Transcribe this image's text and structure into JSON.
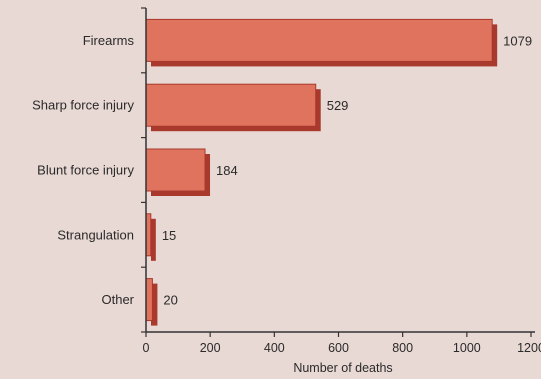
{
  "chart_data": {
    "type": "bar",
    "orientation": "horizontal",
    "categories": [
      "Firearms",
      "Sharp force injury",
      "Blunt force injury",
      "Strangulation",
      "Other"
    ],
    "values": [
      1079,
      529,
      184,
      15,
      20
    ],
    "value_labels": [
      "1079",
      "529",
      "184",
      "15",
      "20"
    ],
    "title": "",
    "xlabel": "Number of deaths",
    "ylabel": "",
    "xlim": [
      0,
      1200
    ],
    "xticks": [
      0,
      200,
      400,
      600,
      800,
      1000,
      1200
    ],
    "grid": false,
    "colors": {
      "bar": "#e0735e",
      "bar_edge": "#a8392c",
      "background": "#e9d9d4",
      "axis": "#333333"
    }
  }
}
